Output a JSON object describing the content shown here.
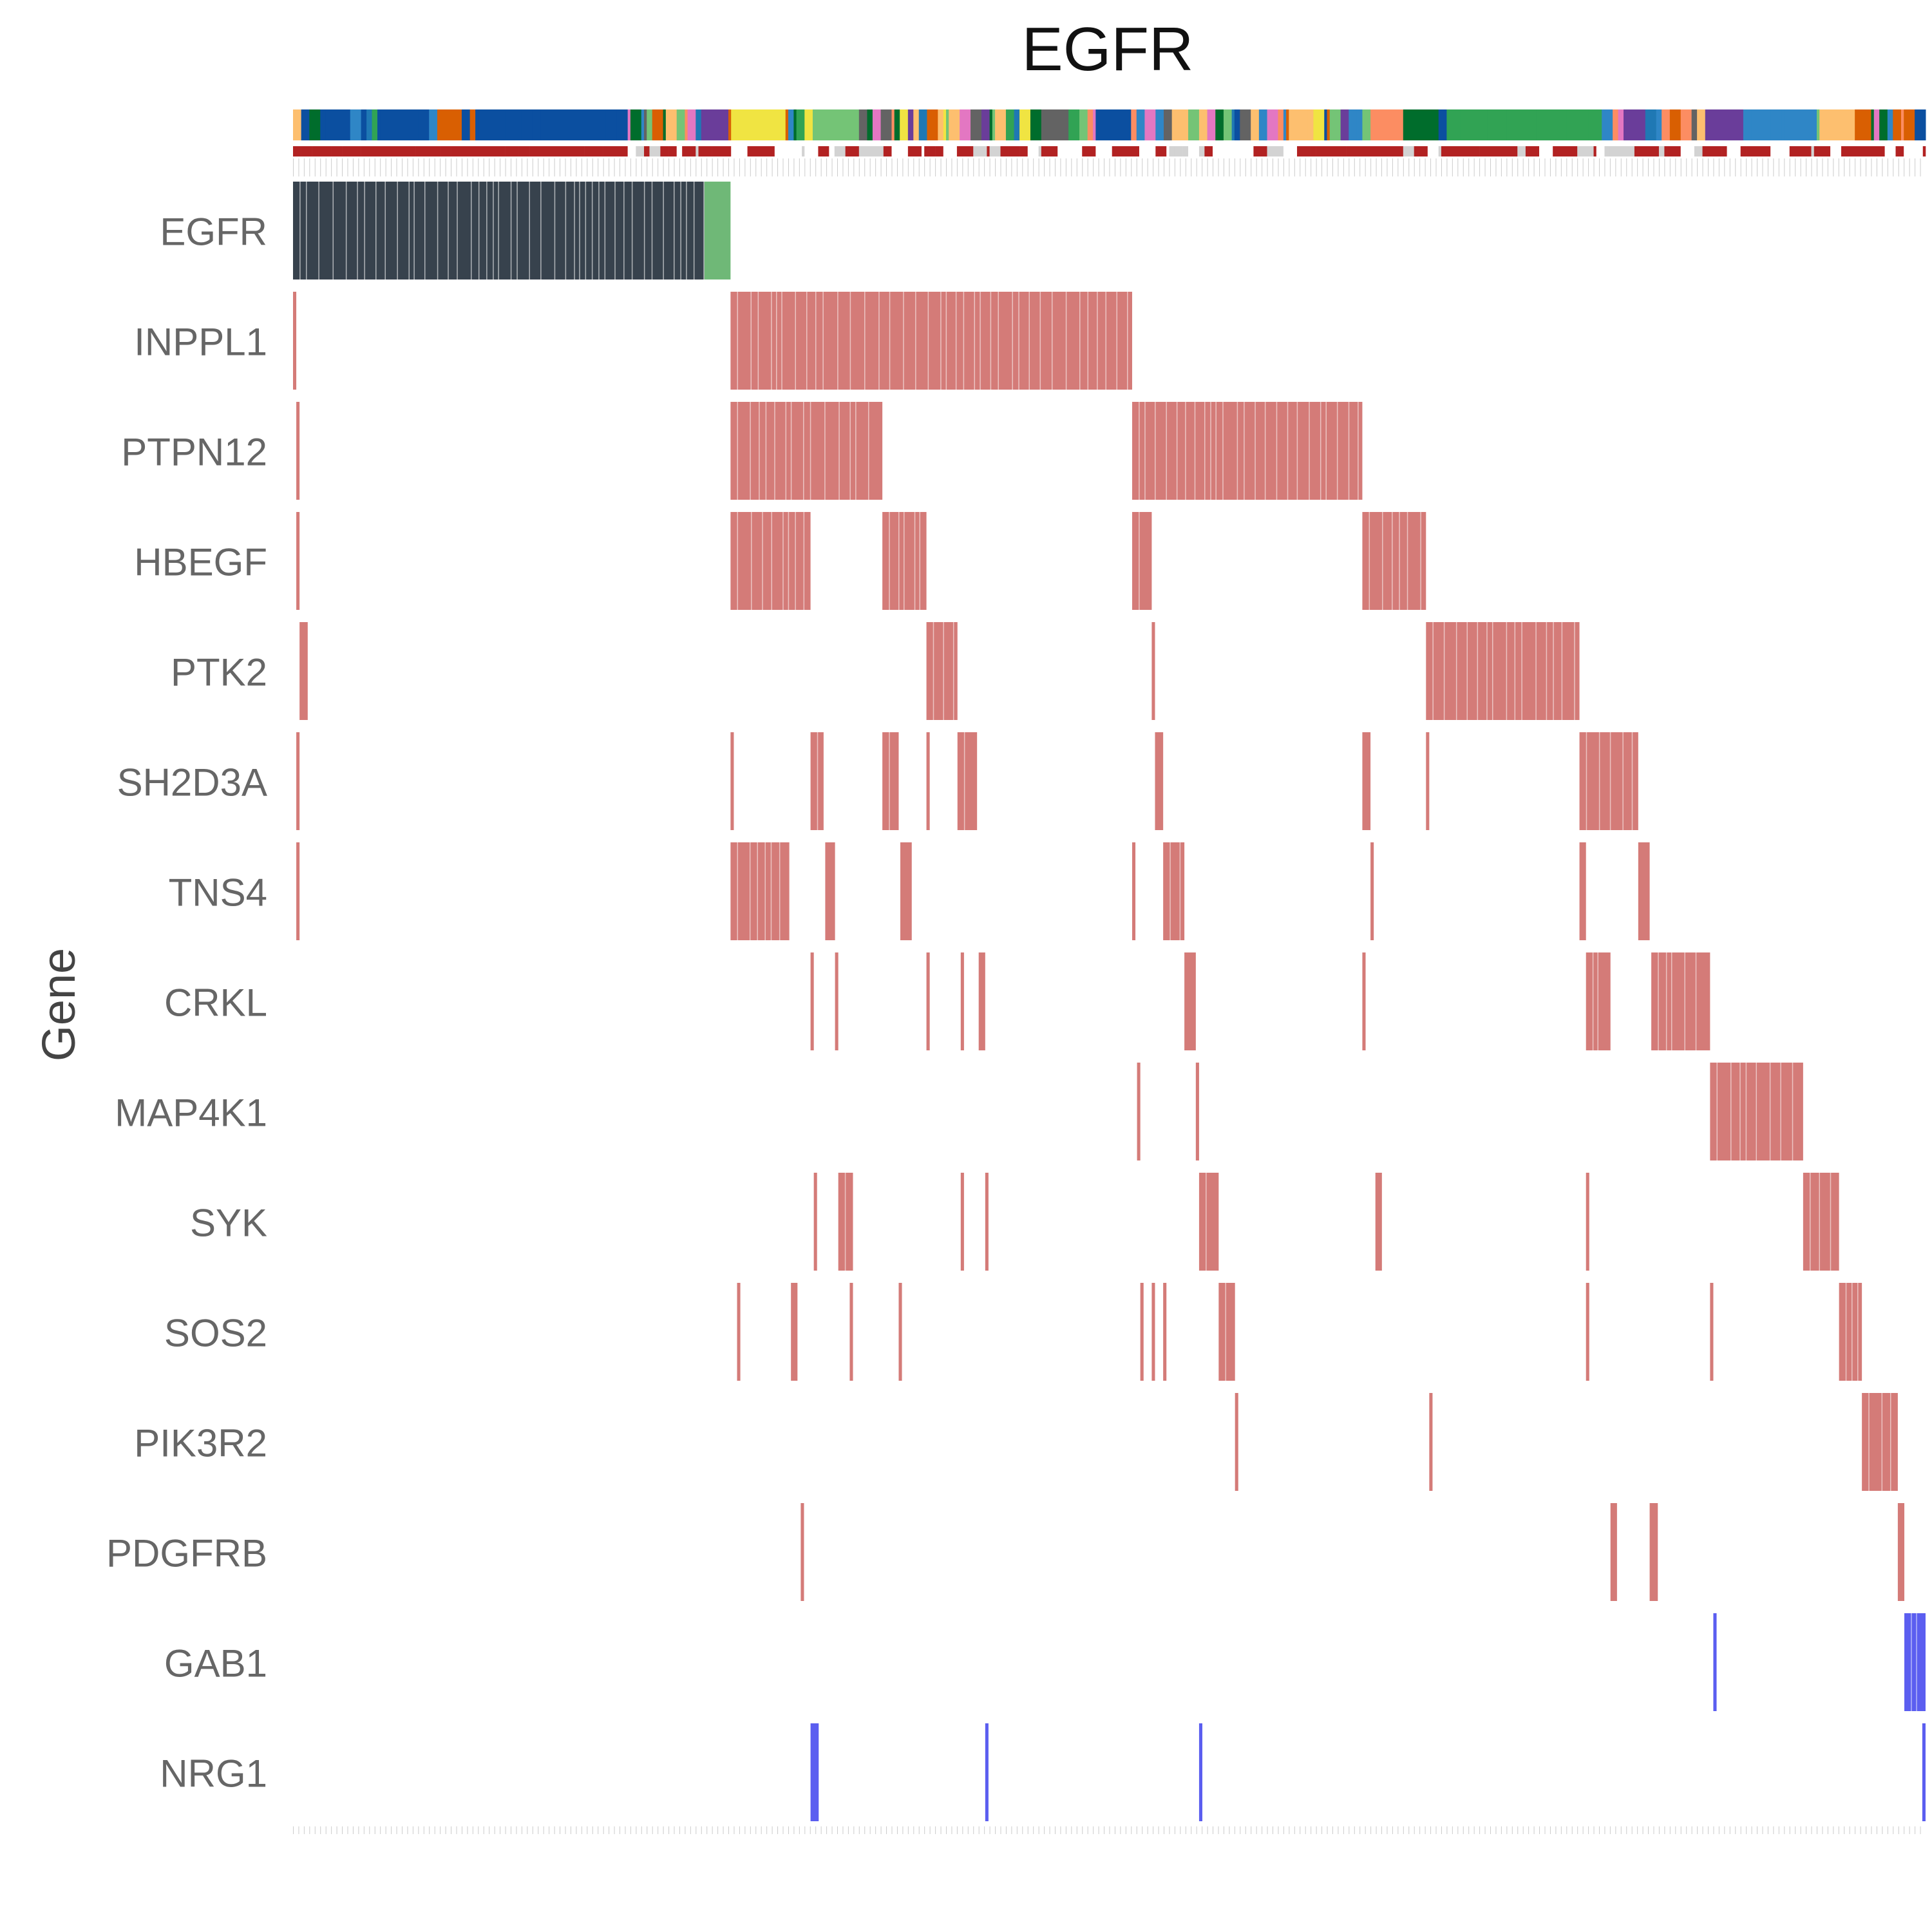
{
  "chart_data": {
    "type": "heatmap",
    "title": "EGFR",
    "ylabel": "Gene",
    "xlabel": "",
    "n_samples": 600,
    "genes": [
      "EGFR",
      "INPPL1",
      "PTPN12",
      "HBEGF",
      "PTK2",
      "SH2D3A",
      "TNS4",
      "CRKL",
      "MAP4K1",
      "SYK",
      "SOS2",
      "PIK3R2",
      "PDGFRB",
      "GAB1",
      "NRG1"
    ],
    "colors": {
      "egfr_high": "#37424d",
      "egfr_low": "#6fb877",
      "positive": "#d47b78",
      "negative": "#5b5ef0",
      "annotation_red": "#b22222",
      "annotation_gray": "#d3d3d3"
    },
    "annotation_palette": [
      "#0b4fa0",
      "#2f86c6",
      "#31a354",
      "#74c476",
      "#f0e442",
      "#d95f02",
      "#fc8d62",
      "#6a3d9a",
      "#e377c2",
      "#006d2c",
      "#636363",
      "#1f78b4",
      "#fdbf6f"
    ],
    "egfr_split": [
      0.0,
      0.252,
      0.268
    ],
    "rows": [
      {
        "gene": "INPPL1",
        "sign": "positive",
        "ranges": [
          [
            0.0,
            0.002
          ],
          [
            0.268,
            0.514
          ]
        ]
      },
      {
        "gene": "PTPN12",
        "sign": "positive",
        "ranges": [
          [
            0.002,
            0.004
          ],
          [
            0.268,
            0.361
          ],
          [
            0.514,
            0.655
          ]
        ]
      },
      {
        "gene": "HBEGF",
        "sign": "positive",
        "ranges": [
          [
            0.002,
            0.004
          ],
          [
            0.268,
            0.317
          ],
          [
            0.361,
            0.388
          ],
          [
            0.514,
            0.526
          ],
          [
            0.655,
            0.694
          ]
        ]
      },
      {
        "gene": "PTK2",
        "sign": "positive",
        "ranges": [
          [
            0.004,
            0.009
          ],
          [
            0.388,
            0.407
          ],
          [
            0.526,
            0.528
          ],
          [
            0.694,
            0.788
          ]
        ]
      },
      {
        "gene": "SH2D3A",
        "sign": "positive",
        "ranges": [
          [
            0.002,
            0.004
          ],
          [
            0.268,
            0.27
          ],
          [
            0.317,
            0.325
          ],
          [
            0.361,
            0.371
          ],
          [
            0.388,
            0.39
          ],
          [
            0.407,
            0.419
          ],
          [
            0.528,
            0.533
          ],
          [
            0.655,
            0.66
          ],
          [
            0.694,
            0.696
          ],
          [
            0.788,
            0.824
          ]
        ]
      },
      {
        "gene": "TNS4",
        "sign": "positive",
        "ranges": [
          [
            0.002,
            0.004
          ],
          [
            0.268,
            0.304
          ],
          [
            0.326,
            0.332
          ],
          [
            0.372,
            0.379
          ],
          [
            0.514,
            0.516
          ],
          [
            0.533,
            0.546
          ],
          [
            0.66,
            0.662
          ],
          [
            0.788,
            0.792
          ],
          [
            0.824,
            0.831
          ]
        ]
      },
      {
        "gene": "CRKL",
        "sign": "positive",
        "ranges": [
          [
            0.317,
            0.319
          ],
          [
            0.332,
            0.334
          ],
          [
            0.388,
            0.39
          ],
          [
            0.409,
            0.411
          ],
          [
            0.42,
            0.424
          ],
          [
            0.546,
            0.553
          ],
          [
            0.655,
            0.657
          ],
          [
            0.792,
            0.807
          ],
          [
            0.832,
            0.868
          ]
        ]
      },
      {
        "gene": "MAP4K1",
        "sign": "positive",
        "ranges": [
          [
            0.517,
            0.519
          ],
          [
            0.553,
            0.555
          ],
          [
            0.868,
            0.925
          ]
        ]
      },
      {
        "gene": "SYK",
        "sign": "positive",
        "ranges": [
          [
            0.319,
            0.321
          ],
          [
            0.334,
            0.343
          ],
          [
            0.409,
            0.411
          ],
          [
            0.424,
            0.426
          ],
          [
            0.555,
            0.567
          ],
          [
            0.663,
            0.667
          ],
          [
            0.792,
            0.794
          ],
          [
            0.925,
            0.947
          ]
        ]
      },
      {
        "gene": "SOS2",
        "sign": "positive",
        "ranges": [
          [
            0.272,
            0.274
          ],
          [
            0.305,
            0.309
          ],
          [
            0.341,
            0.343
          ],
          [
            0.371,
            0.373
          ],
          [
            0.519,
            0.521
          ],
          [
            0.526,
            0.528
          ],
          [
            0.533,
            0.535
          ],
          [
            0.567,
            0.577
          ],
          [
            0.792,
            0.794
          ],
          [
            0.868,
            0.87
          ],
          [
            0.947,
            0.961
          ]
        ]
      },
      {
        "gene": "PIK3R2",
        "sign": "positive",
        "ranges": [
          [
            0.577,
            0.579
          ],
          [
            0.696,
            0.698
          ],
          [
            0.961,
            0.983
          ]
        ]
      },
      {
        "gene": "PDGFRB",
        "sign": "positive",
        "ranges": [
          [
            0.311,
            0.313
          ],
          [
            0.807,
            0.811
          ],
          [
            0.831,
            0.836
          ],
          [
            0.983,
            0.987
          ]
        ]
      },
      {
        "gene": "GAB1",
        "sign": "negative",
        "ranges": [
          [
            0.87,
            0.872
          ],
          [
            0.987,
            1.0
          ]
        ]
      },
      {
        "gene": "NRG1",
        "sign": "negative",
        "ranges": [
          [
            0.317,
            0.322
          ],
          [
            0.424,
            0.426
          ],
          [
            0.555,
            0.557
          ],
          [
            0.998,
            1.0
          ]
        ]
      }
    ]
  }
}
